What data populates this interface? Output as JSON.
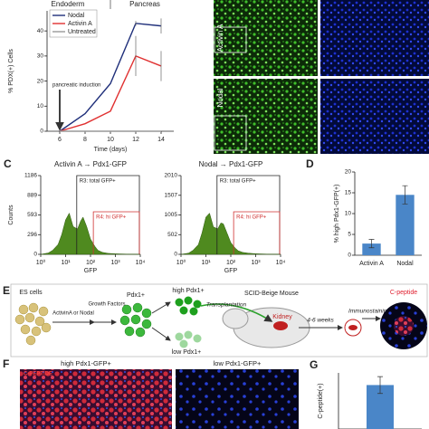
{
  "panel_labels": [
    "C",
    "D",
    "E",
    "F",
    "G"
  ],
  "images": {
    "b_rows": [
      "Activin A",
      "Nodal"
    ],
    "f_titles": [
      "high Pdx1-GFP+",
      "low Pdx1-GFP+"
    ],
    "f_stain": "C-PEPTIDE"
  },
  "diagram": {
    "es_cells": "ES cells",
    "inducers": "ActivinA or Nodal",
    "growth": "Growth Factors",
    "pdx1": "Pdx1+",
    "high": "high Pdx1+",
    "low": "low Pdx1+",
    "mouse": "SCID-Beige Mouse",
    "transplant": "Transplantation",
    "kidney": "Kidney",
    "weeks": "4-6 weeks",
    "immuno": "Immunostaining",
    "cpep": "C-peptide"
  },
  "chart_data": [
    {
      "type": "line",
      "annotations": [
        "Endoderm",
        "Pancreas",
        "pancreatic induction"
      ],
      "x_label": "Time (days)",
      "y_label": "% PDX(+) Cells",
      "x": [
        6,
        8,
        10,
        12,
        14
      ],
      "xlim": [
        5,
        15
      ],
      "xticks": [
        6,
        8,
        10,
        12,
        14
      ],
      "ylim": [
        0,
        48
      ],
      "yticks": [
        0,
        10,
        20,
        30,
        40
      ],
      "series": [
        {
          "name": "Nodal",
          "color": "#1f2f7a",
          "values": [
            0,
            7,
            19,
            43,
            42
          ],
          "errors": [
            null,
            null,
            null,
            1,
            3
          ]
        },
        {
          "name": "Activin A",
          "color": "#e03030",
          "values": [
            0,
            3,
            8,
            30,
            26
          ],
          "errors": [
            null,
            null,
            null,
            8,
            6
          ]
        },
        {
          "name": "Untreated",
          "color": "#999999",
          "values": [
            0,
            0,
            0,
            0,
            0
          ],
          "errors": [
            null,
            null,
            null,
            null,
            null
          ]
        }
      ]
    },
    {
      "type": "area",
      "title": "Activin A → Pdx1-GFP",
      "x_label": "GFP",
      "y_label": "Counts",
      "log_x": true,
      "color": "#4f8a1f",
      "x": [
        1,
        2,
        3,
        5,
        7,
        10,
        14,
        20,
        30,
        40,
        50,
        70,
        100,
        150,
        200,
        300,
        500,
        1000,
        3000,
        10000
      ],
      "values": [
        0,
        20,
        60,
        150,
        300,
        520,
        620,
        420,
        380,
        500,
        560,
        420,
        230,
        120,
        60,
        30,
        15,
        8,
        3,
        0
      ],
      "xlim": [
        1,
        10000
      ],
      "xticks": [
        {
          "value": 1,
          "label": "10⁰"
        },
        {
          "value": 10,
          "label": "10¹"
        },
        {
          "value": 100,
          "label": "10²"
        },
        {
          "value": 1000,
          "label": "10³"
        },
        {
          "value": 10000,
          "label": "10⁴"
        }
      ],
      "ylim": [
        0,
        1186
      ],
      "yticks": [
        0,
        296,
        593,
        889,
        1186
      ],
      "gates": [
        {
          "label": "R3: total GFP+",
          "from": 28,
          "color": "#222222"
        },
        {
          "label": "R4: hi GFP+",
          "from": 130,
          "color": "#d03030"
        }
      ]
    },
    {
      "type": "area",
      "title": "Nodal → Pdx1-GFP",
      "x_label": "GFP",
      "log_x": true,
      "color": "#4f8a1f",
      "x": [
        1,
        2,
        3,
        5,
        7,
        10,
        14,
        20,
        30,
        40,
        50,
        70,
        100,
        150,
        200,
        300,
        500,
        1000,
        3000,
        10000
      ],
      "values": [
        0,
        30,
        100,
        250,
        550,
        950,
        1050,
        700,
        650,
        800,
        780,
        550,
        300,
        160,
        90,
        50,
        30,
        15,
        5,
        0
      ],
      "xlim": [
        1,
        10000
      ],
      "xticks": [
        {
          "value": 1,
          "label": "10⁰"
        },
        {
          "value": 10,
          "label": "10¹"
        },
        {
          "value": 100,
          "label": "10²"
        },
        {
          "value": 1000,
          "label": "10³"
        },
        {
          "value": 10000,
          "label": "10⁴"
        }
      ],
      "ylim": [
        0,
        2010
      ],
      "yticks": [
        0,
        502,
        1005,
        1507,
        2010
      ],
      "gates": [
        {
          "label": "R3: total GFP+",
          "from": 28,
          "color": "#222222"
        },
        {
          "label": "R4: hi GFP+",
          "from": 130,
          "color": "#d03030"
        }
      ]
    },
    {
      "type": "bar",
      "y_label": "% high Pdx1-GFP(+)",
      "categories": [
        "Activin A",
        "Nodal"
      ],
      "values": [
        2.8,
        14.5
      ],
      "errors": [
        1,
        2.2
      ],
      "color": "#4a86c8",
      "ylim": [
        0,
        20
      ],
      "yticks": [
        0,
        5,
        10,
        15,
        20
      ]
    },
    {
      "type": "bar",
      "y_label": "C-peptide(+)",
      "categories": [
        null
      ],
      "values": [
        47
      ],
      "errors": [
        9
      ],
      "color": "#4a86c8",
      "ylim": [
        0,
        60
      ]
    }
  ]
}
